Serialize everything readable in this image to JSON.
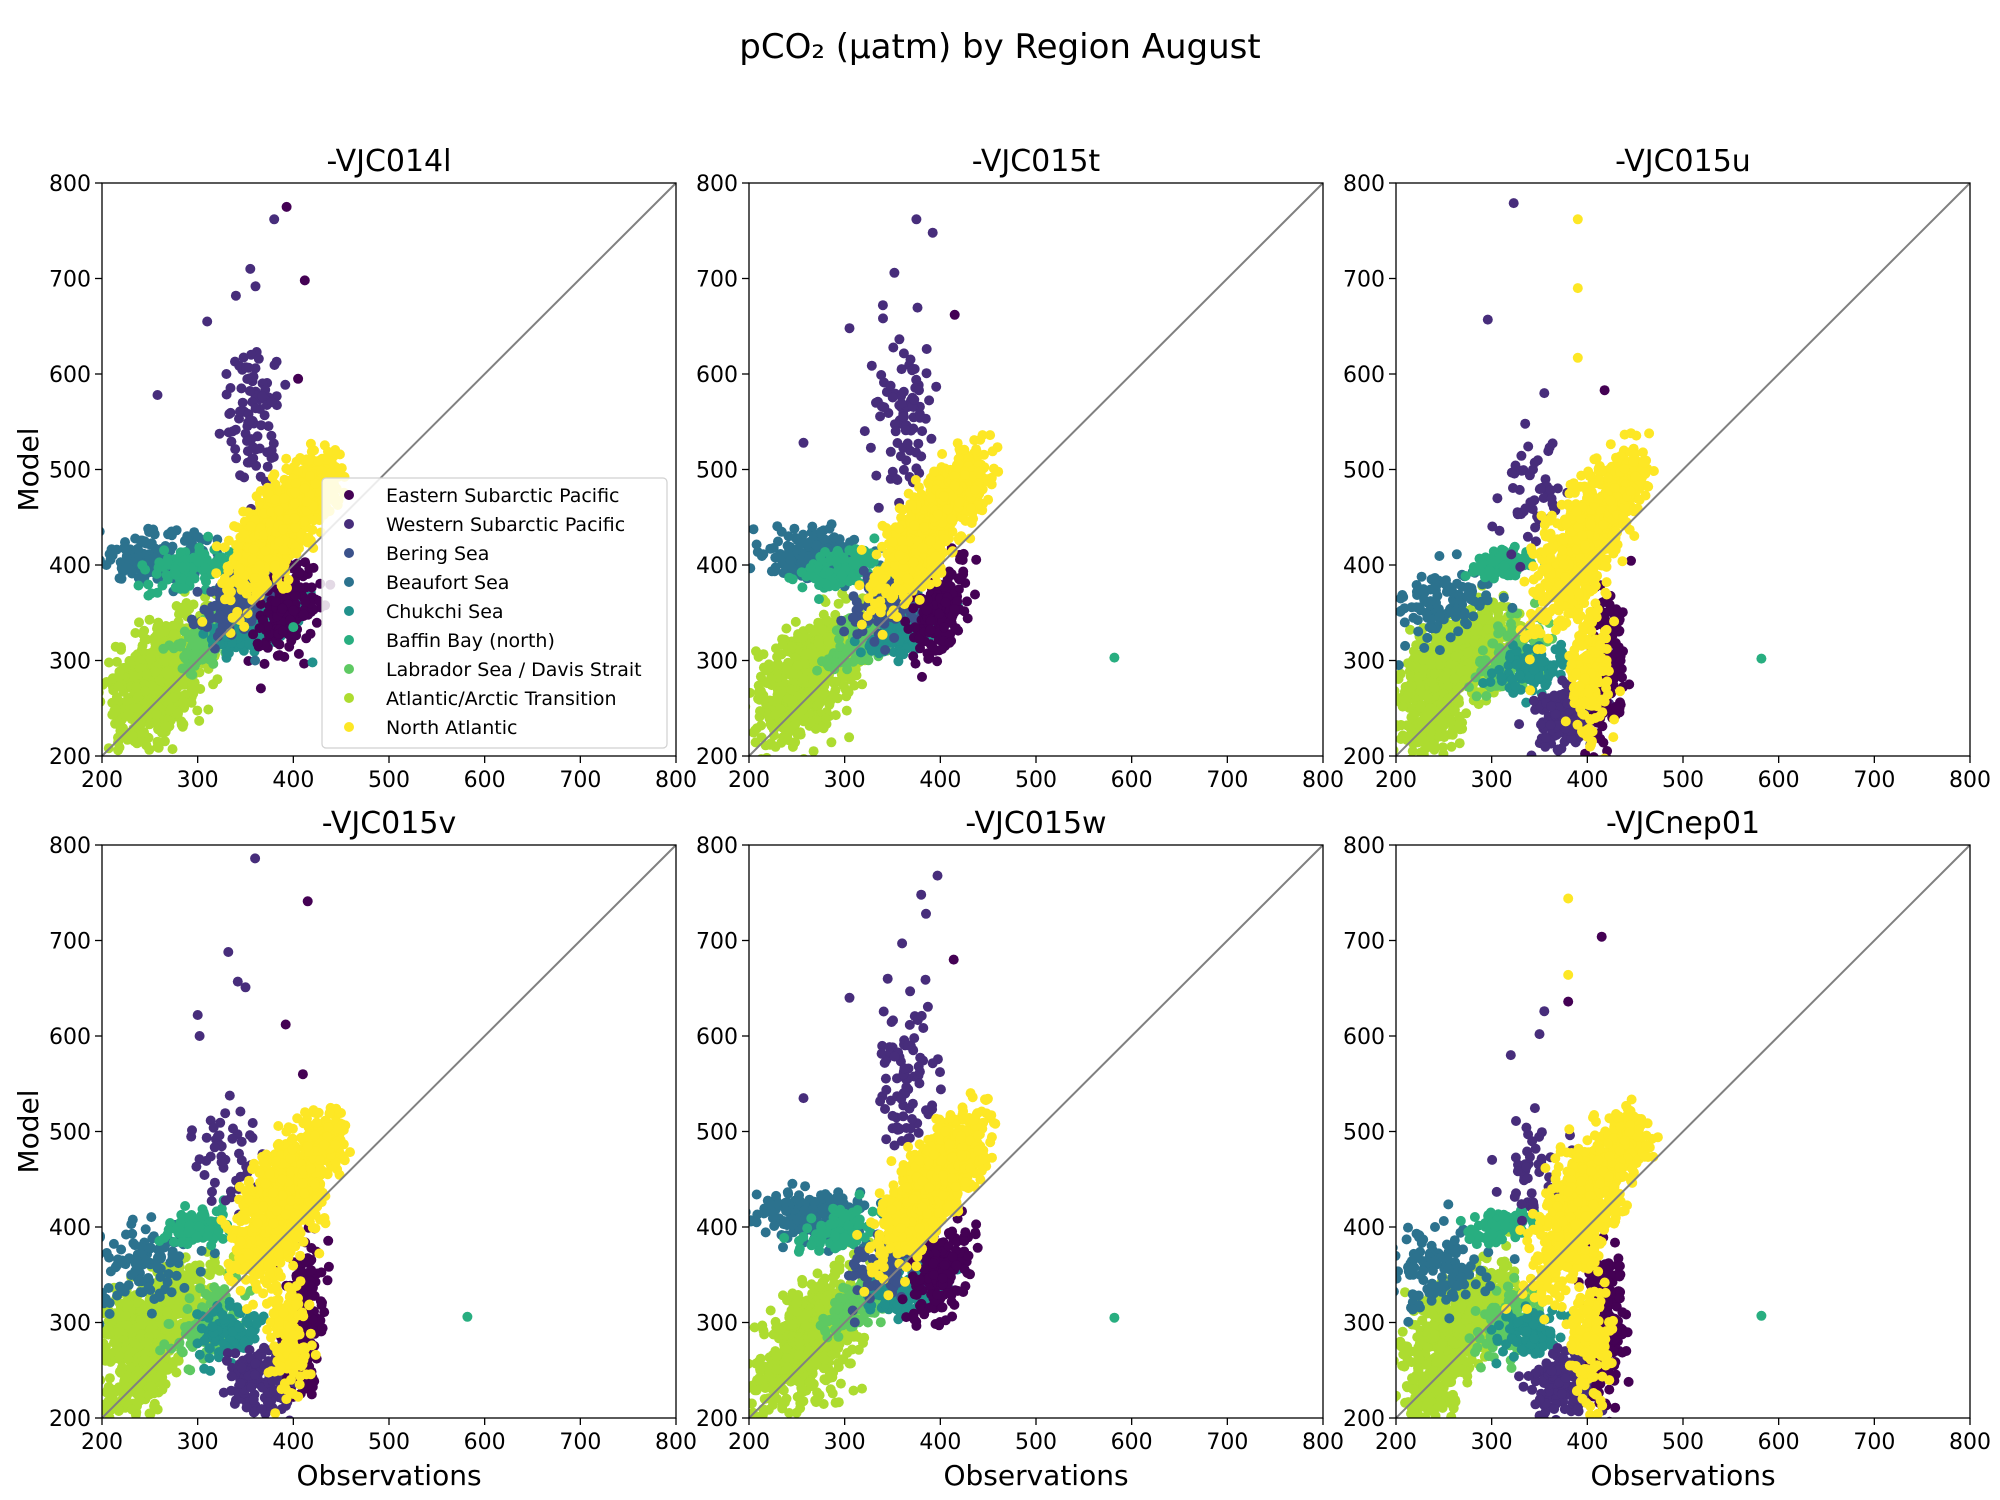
{
  "figure": {
    "suptitle": "pCO₂ (µatm) by Region August"
  },
  "chart_data": {
    "type": "scatter",
    "xlabel": "Observations",
    "ylabel": "Model",
    "xlim": [
      200,
      800
    ],
    "ylim": [
      200,
      800
    ],
    "ticks": [
      200,
      300,
      400,
      500,
      600,
      700,
      800
    ],
    "reference_line": "1:1",
    "legend_location": "lower-right of first panel",
    "regions": [
      {
        "name": "Eastern Subarctic Pacific",
        "color": "#440154"
      },
      {
        "name": "Western Subarctic Pacific",
        "color": "#472d7b"
      },
      {
        "name": "Bering Sea",
        "color": "#3b528b"
      },
      {
        "name": "Beaufort Sea",
        "color": "#2c728e"
      },
      {
        "name": "Chukchi Sea",
        "color": "#21918c"
      },
      {
        "name": "Baffin Bay (north)",
        "color": "#28ae80"
      },
      {
        "name": "Labrador Sea / Davis Strait",
        "color": "#5ec962"
      },
      {
        "name": "Atlantic/Arctic Transition",
        "color": "#addc30"
      },
      {
        "name": "North Atlantic",
        "color": "#fde725"
      }
    ],
    "panels": [
      {
        "title": "-VJC014l",
        "variant": "a",
        "outliers": [
          {
            "region": 0,
            "x": 393,
            "y": 775
          },
          {
            "region": 1,
            "x": 380,
            "y": 762
          },
          {
            "region": 0,
            "x": 412,
            "y": 698
          },
          {
            "region": 1,
            "x": 355,
            "y": 710
          },
          {
            "region": 1,
            "x": 258,
            "y": 578
          },
          {
            "region": 0,
            "x": 405,
            "y": 595
          },
          {
            "region": 1,
            "x": 340,
            "y": 682
          },
          {
            "region": 1,
            "x": 330,
            "y": 600
          },
          {
            "region": 1,
            "x": 310,
            "y": 655
          },
          {
            "region": 5,
            "x": 400,
            "y": 335
          },
          {
            "region": 4,
            "x": 420,
            "y": 298
          },
          {
            "region": 3,
            "x": 360,
            "y": 300
          }
        ]
      },
      {
        "title": "-VJC015t",
        "variant": "a",
        "outliers": [
          {
            "region": 1,
            "x": 375,
            "y": 762
          },
          {
            "region": 1,
            "x": 392,
            "y": 748
          },
          {
            "region": 0,
            "x": 415,
            "y": 662
          },
          {
            "region": 1,
            "x": 352,
            "y": 706
          },
          {
            "region": 1,
            "x": 257,
            "y": 528
          },
          {
            "region": 1,
            "x": 305,
            "y": 648
          },
          {
            "region": 1,
            "x": 340,
            "y": 672
          },
          {
            "region": 5,
            "x": 582,
            "y": 303
          }
        ]
      },
      {
        "title": "-VJC015u",
        "variant": "b",
        "outliers": [
          {
            "region": 1,
            "x": 323,
            "y": 779
          },
          {
            "region": 8,
            "x": 390,
            "y": 762
          },
          {
            "region": 8,
            "x": 390,
            "y": 690
          },
          {
            "region": 1,
            "x": 296,
            "y": 657
          },
          {
            "region": 8,
            "x": 390,
            "y": 617
          },
          {
            "region": 0,
            "x": 418,
            "y": 583
          },
          {
            "region": 1,
            "x": 355,
            "y": 580
          },
          {
            "region": 1,
            "x": 335,
            "y": 548
          },
          {
            "region": 5,
            "x": 582,
            "y": 302
          }
        ]
      },
      {
        "title": "-VJC015v",
        "variant": "b",
        "outliers": [
          {
            "region": 1,
            "x": 360,
            "y": 786
          },
          {
            "region": 0,
            "x": 415,
            "y": 741
          },
          {
            "region": 1,
            "x": 332,
            "y": 688
          },
          {
            "region": 1,
            "x": 342,
            "y": 657
          },
          {
            "region": 1,
            "x": 350,
            "y": 651
          },
          {
            "region": 1,
            "x": 300,
            "y": 622
          },
          {
            "region": 0,
            "x": 392,
            "y": 612
          },
          {
            "region": 1,
            "x": 302,
            "y": 600
          },
          {
            "region": 0,
            "x": 410,
            "y": 560
          },
          {
            "region": 5,
            "x": 582,
            "y": 306
          }
        ]
      },
      {
        "title": "-VJC015w",
        "variant": "a",
        "outliers": [
          {
            "region": 1,
            "x": 397,
            "y": 768
          },
          {
            "region": 1,
            "x": 380,
            "y": 748
          },
          {
            "region": 1,
            "x": 385,
            "y": 728
          },
          {
            "region": 0,
            "x": 414,
            "y": 680
          },
          {
            "region": 1,
            "x": 360,
            "y": 697
          },
          {
            "region": 1,
            "x": 257,
            "y": 535
          },
          {
            "region": 1,
            "x": 305,
            "y": 640
          },
          {
            "region": 1,
            "x": 345,
            "y": 660
          },
          {
            "region": 5,
            "x": 582,
            "y": 305
          }
        ]
      },
      {
        "title": "-VJCnep01",
        "variant": "b",
        "outliers": [
          {
            "region": 8,
            "x": 380,
            "y": 744
          },
          {
            "region": 0,
            "x": 415,
            "y": 704
          },
          {
            "region": 8,
            "x": 380,
            "y": 664
          },
          {
            "region": 0,
            "x": 380,
            "y": 636
          },
          {
            "region": 1,
            "x": 355,
            "y": 626
          },
          {
            "region": 1,
            "x": 350,
            "y": 602
          },
          {
            "region": 1,
            "x": 320,
            "y": 580
          },
          {
            "region": 5,
            "x": 582,
            "y": 307
          }
        ]
      }
    ]
  }
}
